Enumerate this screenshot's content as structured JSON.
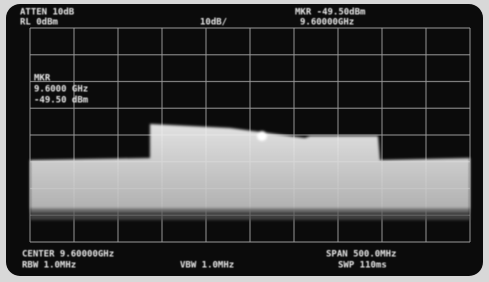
{
  "header": {
    "atten": "ATTEN 10dB",
    "ref_level": "RL 0dBm",
    "scale": "10dB/",
    "marker": "MKR -49.50dBm",
    "marker_freq": "9.60000GHz"
  },
  "marker_readout": {
    "label": "MKR",
    "freq": "9.6000 GHz",
    "level": "-49.50 dBm"
  },
  "footer": {
    "center": "CENTER 9.60000GHz",
    "span": "SPAN 500.0MHz",
    "rbw": "RBW 1.0MHz",
    "vbw": "VBW 1.0MHz",
    "sweep": "SWP 110ms"
  }
}
